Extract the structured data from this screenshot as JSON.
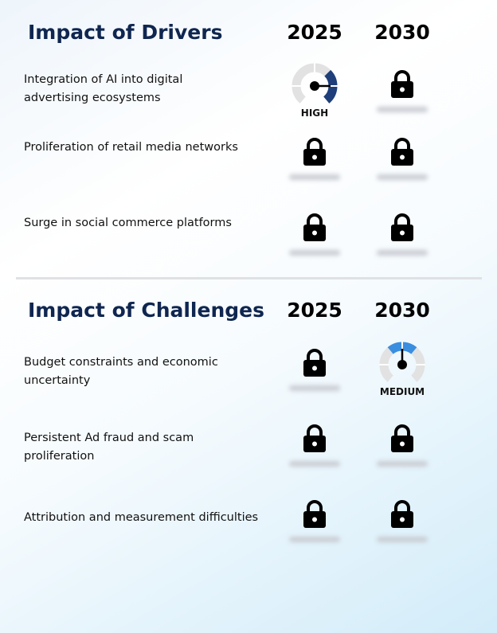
{
  "drivers": {
    "title": "Impact of Drivers",
    "years": [
      "2025",
      "2030"
    ],
    "rows": [
      {
        "label": "Integration of AI into digital advertising ecosystems",
        "y2025": {
          "type": "gauge",
          "level": "HIGH"
        },
        "y2030": {
          "type": "locked"
        }
      },
      {
        "label": "Proliferation of retail media networks",
        "y2025": {
          "type": "locked"
        },
        "y2030": {
          "type": "locked"
        }
      },
      {
        "label": "Surge in social commerce platforms",
        "y2025": {
          "type": "locked"
        },
        "y2030": {
          "type": "locked"
        }
      }
    ]
  },
  "challenges": {
    "title": "Impact of Challenges",
    "years": [
      "2025",
      "2030"
    ],
    "rows": [
      {
        "label": "Budget constraints and economic uncertainty",
        "y2025": {
          "type": "locked"
        },
        "y2030": {
          "type": "gauge",
          "level": "MEDIUM"
        }
      },
      {
        "label": "Persistent Ad fraud and scam proliferation",
        "y2025": {
          "type": "locked"
        },
        "y2030": {
          "type": "locked"
        }
      },
      {
        "label": "Attribution and measurement difficulties",
        "y2025": {
          "type": "locked"
        },
        "y2030": {
          "type": "locked"
        }
      }
    ]
  },
  "colors": {
    "title": "#0f2650",
    "high": "#1f3f7a",
    "medium": "#3a8ee0",
    "gauge_track": "#e2e2e2"
  },
  "icons": {
    "locked": "lock-icon",
    "gauge": "gauge-icon"
  }
}
